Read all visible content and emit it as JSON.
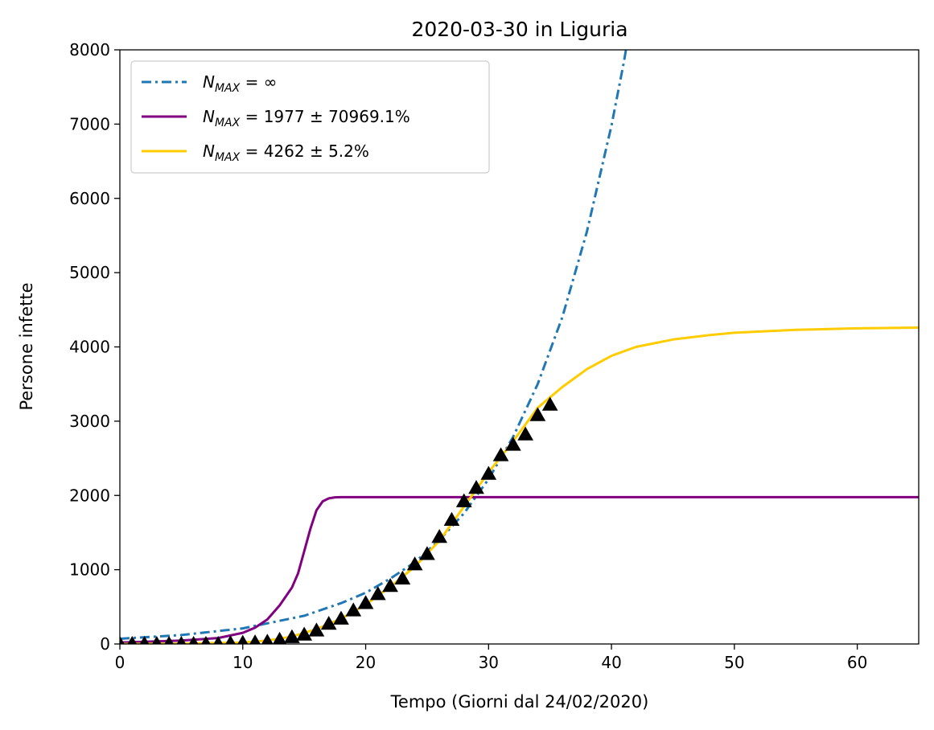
{
  "chart_data": {
    "type": "line",
    "title": "2020-03-30 in Liguria",
    "xlabel": "Tempo (Giorni dal 24/02/2020)",
    "ylabel": "Persone infette",
    "xlim": [
      0,
      65
    ],
    "ylim": [
      0,
      8000
    ],
    "xticks": [
      "0",
      "10",
      "20",
      "30",
      "40",
      "50",
      "60"
    ],
    "yticks": [
      "0",
      "1000",
      "2000",
      "3000",
      "4000",
      "5000",
      "6000",
      "7000",
      "8000"
    ],
    "grid": false,
    "legend_position": "top-left",
    "series": [
      {
        "name_main": "N",
        "name_sub": "MAX",
        "name_rest": " = ∞",
        "style": "dashdot",
        "color": "#1f77b4",
        "x": [
          0,
          5,
          10,
          15,
          18,
          20,
          22,
          24,
          26,
          28,
          30,
          32,
          34,
          36,
          38,
          40,
          41,
          42
        ],
        "y": [
          70,
          120,
          210,
          380,
          550,
          690,
          880,
          1100,
          1400,
          1760,
          2220,
          2790,
          3500,
          4400,
          5550,
          6980,
          7830,
          8790
        ]
      },
      {
        "name_main": "N",
        "name_sub": "MAX",
        "name_rest": " = 1977 ± 70969.1%",
        "style": "solid",
        "color": "#800080",
        "x": [
          0,
          5,
          8,
          10,
          11,
          12,
          13,
          14,
          14.5,
          15,
          15.5,
          16,
          16.5,
          17,
          17.5,
          18,
          20,
          30,
          40,
          50,
          60,
          65
        ],
        "y": [
          20,
          45,
          80,
          150,
          220,
          330,
          520,
          760,
          950,
          1250,
          1550,
          1800,
          1920,
          1960,
          1975,
          1977,
          1977,
          1977,
          1977,
          1977,
          1977,
          1977
        ]
      },
      {
        "name_main": "N",
        "name_sub": "MAX",
        "name_rest": " = 4262 ± 5.2%",
        "style": "solid",
        "color": "#ffcc00",
        "x": [
          0,
          5,
          10,
          12,
          14,
          16,
          18,
          20,
          22,
          24,
          26,
          28,
          30,
          32,
          34,
          36,
          38,
          40,
          42,
          45,
          48,
          50,
          55,
          60,
          65
        ],
        "y": [
          0,
          5,
          20,
          45,
          100,
          200,
          340,
          530,
          770,
          1040,
          1390,
          1850,
          2310,
          2730,
          3180,
          3460,
          3700,
          3880,
          4000,
          4100,
          4160,
          4190,
          4230,
          4250,
          4260
        ]
      }
    ],
    "observations": {
      "marker": "triangle",
      "color": "#000000",
      "x": [
        0,
        1,
        2,
        3,
        4,
        5,
        6,
        7,
        8,
        9,
        10,
        11,
        12,
        13,
        14,
        15,
        16,
        17,
        18,
        19,
        20,
        21,
        22,
        23,
        24,
        25,
        26,
        27,
        28,
        29,
        30,
        31,
        32,
        33,
        34,
        35
      ],
      "y": [
        0,
        0,
        0,
        0,
        0,
        0,
        0,
        0,
        0,
        10,
        15,
        20,
        30,
        55,
        90,
        125,
        180,
        270,
        340,
        450,
        550,
        670,
        780,
        880,
        1070,
        1210,
        1440,
        1670,
        1920,
        2100,
        2290,
        2540,
        2680,
        2820,
        3080,
        3220
      ]
    }
  }
}
